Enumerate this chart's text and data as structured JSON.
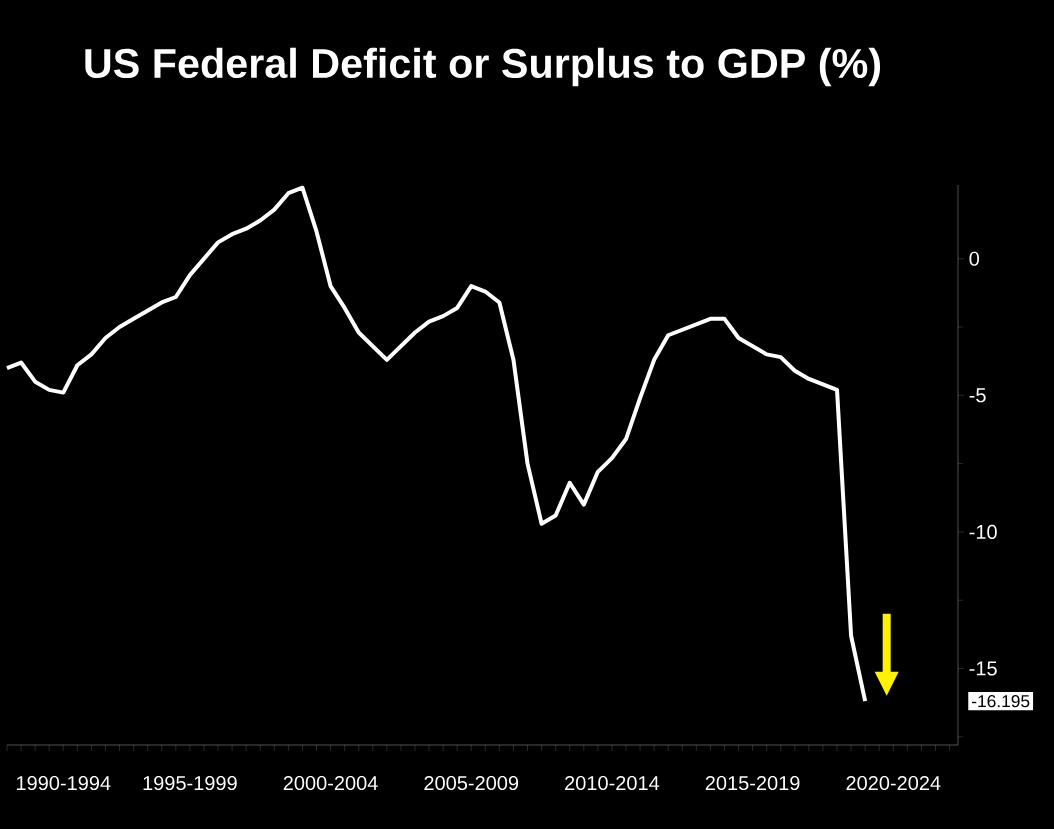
{
  "chart_data": {
    "type": "line",
    "title": "US Federal Deficit or Surplus to GDP (%)",
    "categories": [
      null,
      null,
      null,
      null,
      "1990-1994",
      null,
      null,
      null,
      null,
      null,
      null,
      null,
      null,
      "1995-1999",
      null,
      null,
      null,
      null,
      null,
      null,
      null,
      null,
      null,
      "2000-2004",
      null,
      null,
      null,
      null,
      null,
      null,
      null,
      null,
      null,
      "2005-2009",
      null,
      null,
      null,
      null,
      null,
      null,
      null,
      null,
      null,
      "2010-2014",
      null,
      null,
      null,
      null,
      null,
      null,
      null,
      null,
      null,
      "2015-2019",
      null,
      null,
      null,
      null,
      null,
      null,
      null,
      null,
      null,
      "2020-2024",
      null,
      null,
      null,
      null
    ],
    "series": [
      {
        "color": "#ffffff",
        "values": [
          -4.0,
          -3.8,
          -4.5,
          -4.8,
          -4.9,
          -3.9,
          -3.5,
          -2.9,
          -2.5,
          -2.2,
          -1.9,
          -1.6,
          -1.4,
          -0.6,
          0.0,
          0.6,
          0.9,
          1.1,
          1.4,
          1.8,
          2.4,
          2.6,
          1.0,
          -1.0,
          -1.8,
          -2.7,
          -3.2,
          -3.7,
          -3.2,
          -2.7,
          -2.3,
          -2.1,
          -1.8,
          -1.0,
          -1.2,
          -1.6,
          -3.7,
          -7.5,
          -9.7,
          -9.4,
          -8.2,
          -9.0,
          -7.8,
          -7.3,
          -6.6,
          -5.1,
          -3.7,
          -2.8,
          -2.6,
          -2.4,
          -2.2,
          -2.2,
          -2.9,
          -3.2,
          -3.5,
          -3.6,
          -4.1,
          -4.4,
          -4.6,
          -4.8,
          -13.8,
          -16.195,
          null,
          null,
          null,
          null,
          null,
          null
        ]
      }
    ],
    "ylim": [
      -17.8,
      2.7
    ],
    "yticks": [
      0,
      -5,
      -10,
      -15,
      {
        "value": -2.5,
        "label": null
      },
      {
        "value": -7.5,
        "label": null
      },
      {
        "value": -12.5,
        "label": null
      },
      {
        "value": -17.5,
        "label": null
      }
    ],
    "annotations": [
      "-16.195"
    ],
    "marker": "none",
    "line_style": "solid"
  }
}
